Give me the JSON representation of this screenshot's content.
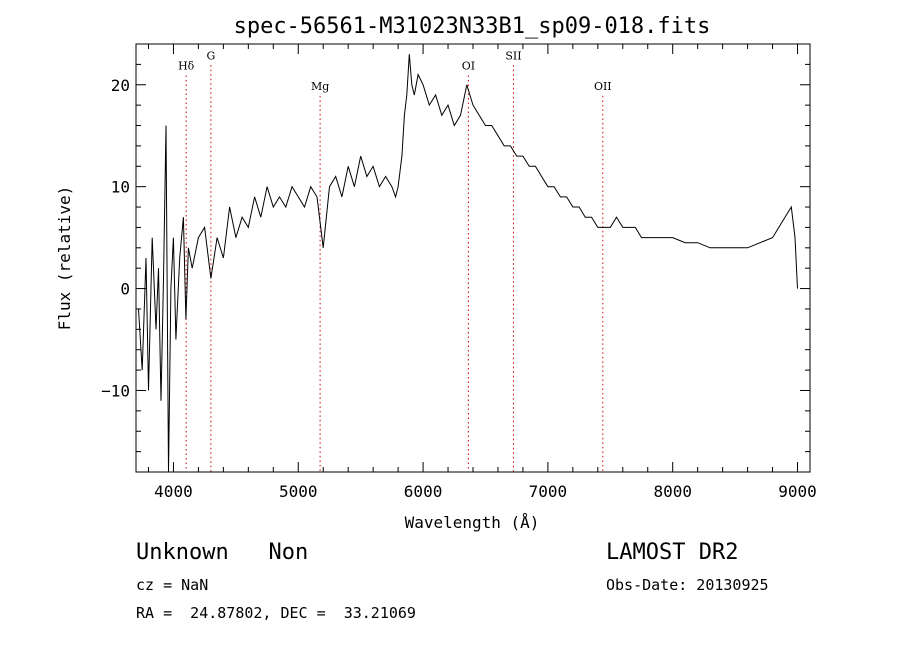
{
  "chart_data": {
    "type": "line",
    "title": "spec-56561-M31023N33B1_sp09-018.fits",
    "xlabel": "Wavelength (Å)",
    "ylabel": "Flux (relative)",
    "xlim": [
      3700,
      9100
    ],
    "ylim": [
      -18,
      24
    ],
    "x_ticks": [
      4000,
      5000,
      6000,
      7000,
      8000,
      9000
    ],
    "x_tick_labels": [
      "4000",
      "5000",
      "6000",
      "7000",
      "8000",
      "9000"
    ],
    "y_ticks": [
      -10,
      0,
      10,
      20
    ],
    "y_tick_labels": [
      "−10",
      "0",
      "10",
      "20"
    ],
    "grid": false,
    "line_color": "#000000",
    "marker_color": "#cc0000",
    "series": [
      {
        "x": [
          3720,
          3750,
          3780,
          3800,
          3830,
          3860,
          3880,
          3900,
          3920,
          3940,
          3960,
          3980,
          4000,
          4020,
          4050,
          4080,
          4100,
          4120,
          4150,
          4200,
          4250,
          4300,
          4350,
          4400,
          4450,
          4500,
          4550,
          4600,
          4650,
          4700,
          4750,
          4800,
          4850,
          4900,
          4950,
          5000,
          5050,
          5100,
          5150,
          5200,
          5250,
          5300,
          5350,
          5400,
          5450,
          5500,
          5550,
          5600,
          5650,
          5700,
          5750,
          5780,
          5800,
          5830,
          5850,
          5870,
          5890,
          5910,
          5930,
          5960,
          6000,
          6050,
          6100,
          6150,
          6200,
          6250,
          6300,
          6350,
          6400,
          6450,
          6500,
          6550,
          6600,
          6650,
          6700,
          6750,
          6800,
          6850,
          6900,
          6950,
          7000,
          7050,
          7100,
          7150,
          7200,
          7250,
          7300,
          7350,
          7400,
          7450,
          7500,
          7550,
          7600,
          7650,
          7700,
          7750,
          7800,
          7850,
          7900,
          7950,
          8000,
          8100,
          8200,
          8300,
          8400,
          8500,
          8600,
          8700,
          8800,
          8850,
          8900,
          8950,
          8980,
          9000
        ],
        "y": [
          -2,
          -8,
          3,
          -10,
          5,
          -4,
          2,
          -11,
          1,
          16,
          -18,
          0,
          5,
          -5,
          3,
          7,
          -3,
          4,
          2,
          5,
          6,
          1,
          5,
          3,
          8,
          5,
          7,
          6,
          9,
          7,
          10,
          8,
          9,
          8,
          10,
          9,
          8,
          10,
          9,
          4,
          10,
          11,
          9,
          12,
          10,
          13,
          11,
          12,
          10,
          11,
          10,
          9,
          10,
          13,
          17,
          19,
          23,
          20,
          19,
          21,
          20,
          18,
          19,
          17,
          18,
          16,
          17,
          20,
          18,
          17,
          16,
          16,
          15,
          14,
          14,
          13,
          13,
          12,
          12,
          11,
          10,
          10,
          9,
          9,
          8,
          8,
          7,
          7,
          6,
          6,
          6,
          7,
          6,
          6,
          6,
          5,
          5,
          5,
          5,
          5,
          5,
          4.5,
          4.5,
          4,
          4,
          4,
          4,
          4.5,
          5,
          6,
          7,
          8,
          5,
          0
        ]
      }
    ],
    "annotations": [
      {
        "label": "Hδ",
        "x": 4102,
        "y": 21.5
      },
      {
        "label": "G",
        "x": 4300,
        "y": 22.5
      },
      {
        "label": "Mg",
        "x": 5175,
        "y": 19.5
      },
      {
        "label": "OI",
        "x": 6363,
        "y": 21.5
      },
      {
        "label": "SII",
        "x": 6724,
        "y": 22.5
      },
      {
        "label": "OII",
        "x": 7440,
        "y": 19.5
      }
    ]
  },
  "info": {
    "class_text": "Unknown   Non",
    "survey_text": "LAMOST DR2",
    "cz_text": "cz = NaN",
    "obs_date_text": "Obs-Date: 20130925",
    "coords_text": "RA =  24.87802, DEC =  33.21069"
  }
}
